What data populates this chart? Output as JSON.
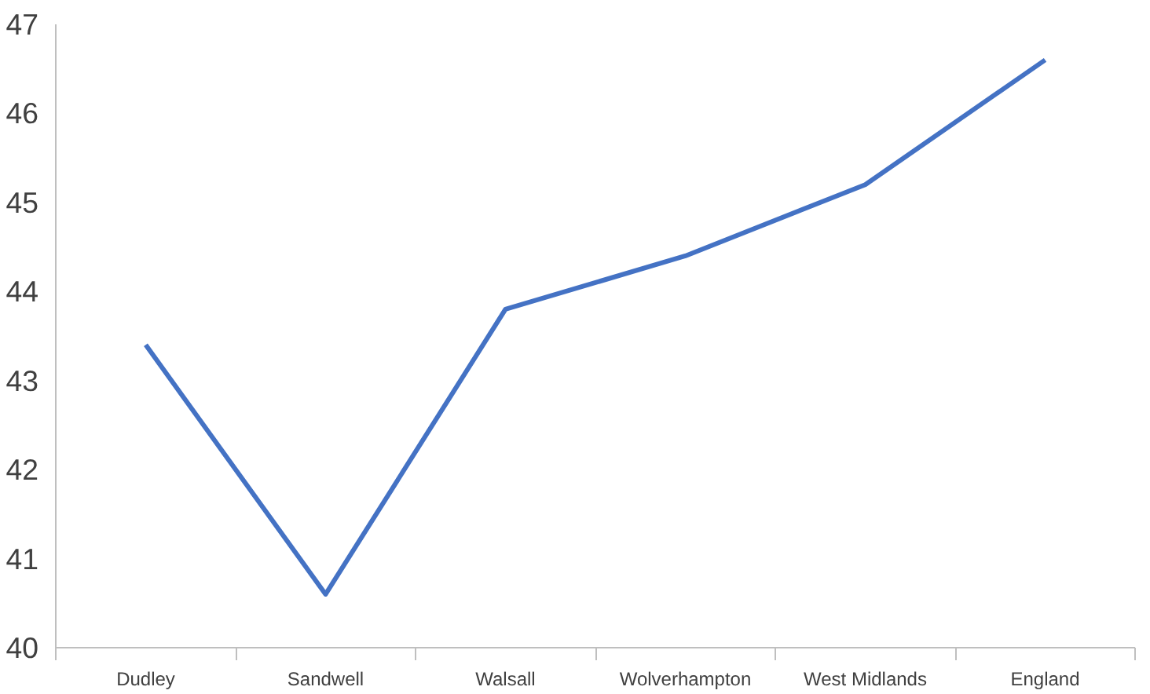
{
  "chart_data": {
    "type": "line",
    "categories": [
      "Dudley",
      "Sandwell",
      "Walsall",
      "Wolverhampton",
      "West Midlands",
      "England"
    ],
    "series": [
      {
        "color": "#4472c4",
        "values": [
          43.4,
          40.6,
          43.8,
          44.4,
          45.2,
          46.6
        ]
      }
    ],
    "ylim": [
      40,
      47
    ],
    "yticks": [
      40,
      41,
      42,
      43,
      44,
      45,
      46,
      47
    ],
    "grid": false,
    "marker": "none",
    "line_style": "solid"
  }
}
